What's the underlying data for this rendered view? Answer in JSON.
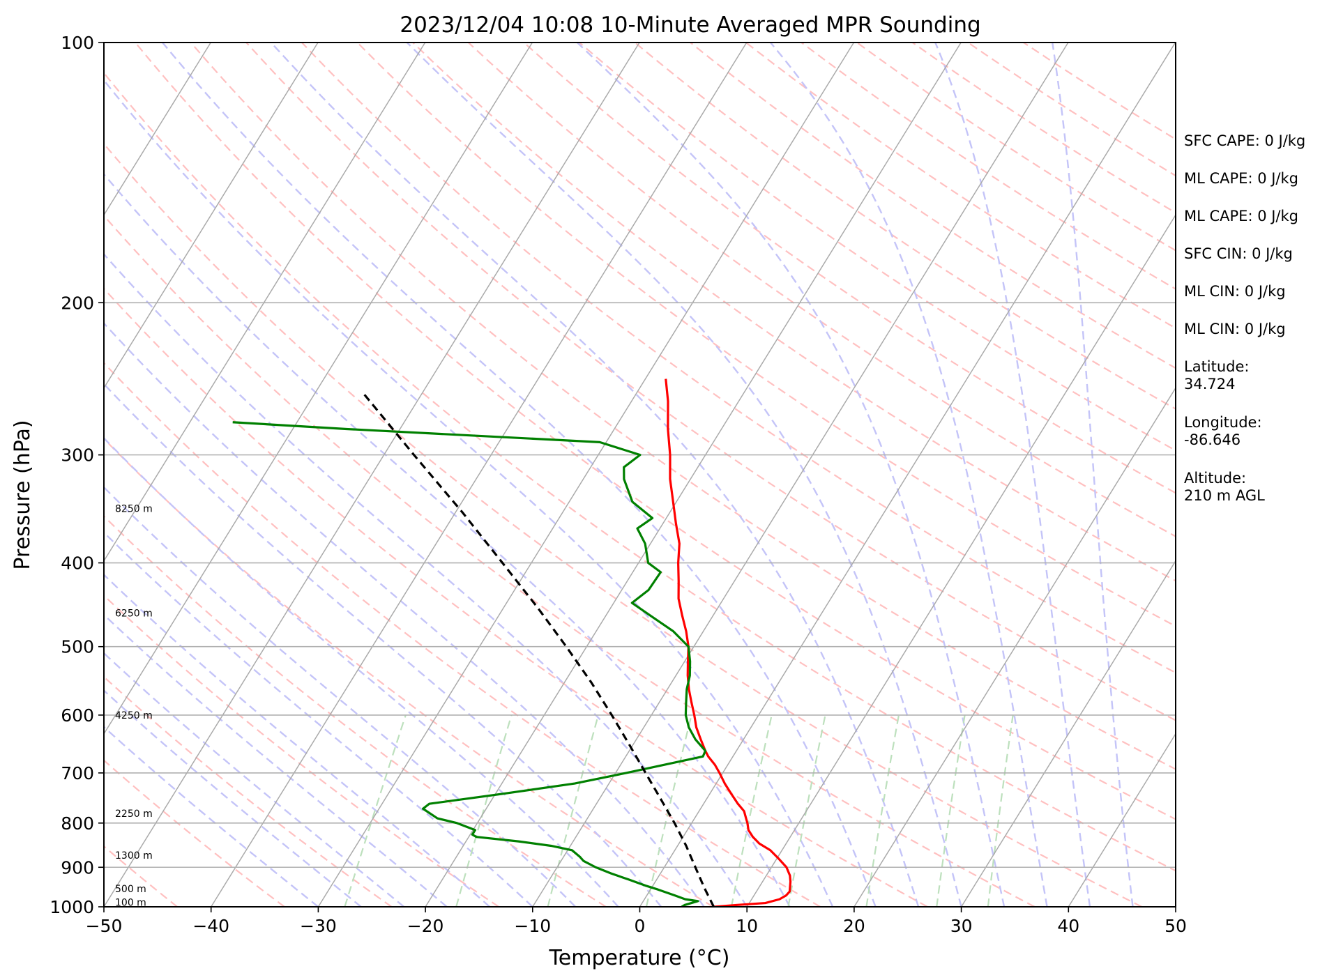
{
  "chart_data": {
    "type": "line",
    "title": "2023/12/04 10:08 10-Minute Averaged MPR Sounding",
    "xlabel": "Temperature (°C)",
    "ylabel": "Pressure (hPa)",
    "xlim": [
      -50,
      50
    ],
    "ylim": [
      1000,
      100
    ],
    "y_scale": "log",
    "x_ticks": [
      -50,
      -40,
      -30,
      -20,
      -10,
      0,
      10,
      20,
      30,
      40,
      50
    ],
    "x_tick_labels": [
      "−50",
      "−40",
      "−30",
      "−20",
      "−10",
      "0",
      "10",
      "20",
      "30",
      "40",
      "50"
    ],
    "y_ticks": [
      100,
      200,
      300,
      400,
      500,
      600,
      700,
      800,
      900,
      1000
    ],
    "grid": true,
    "skew_t": true,
    "series": [
      {
        "color": "#ff0000",
        "points": [
          [
            1000,
            6.9
          ],
          [
            995,
            9.0
          ],
          [
            990,
            11.5
          ],
          [
            980,
            12.6
          ],
          [
            970,
            13.0
          ],
          [
            960,
            13.1
          ],
          [
            950,
            12.9
          ],
          [
            935,
            12.6
          ],
          [
            920,
            12.2
          ],
          [
            900,
            11.4
          ],
          [
            880,
            10.2
          ],
          [
            860,
            8.9
          ],
          [
            845,
            7.5
          ],
          [
            830,
            6.5
          ],
          [
            815,
            5.7
          ],
          [
            800,
            5.2
          ],
          [
            790,
            4.8
          ],
          [
            775,
            4.2
          ],
          [
            760,
            3.2
          ],
          [
            740,
            2.0
          ],
          [
            720,
            0.8
          ],
          [
            700,
            -0.3
          ],
          [
            685,
            -1.2
          ],
          [
            670,
            -2.3
          ],
          [
            660,
            -2.9
          ],
          [
            640,
            -4.0
          ],
          [
            620,
            -5.1
          ],
          [
            600,
            -6.0
          ],
          [
            580,
            -7.0
          ],
          [
            560,
            -8.0
          ],
          [
            540,
            -8.9
          ],
          [
            520,
            -9.7
          ],
          [
            500,
            -10.5
          ],
          [
            480,
            -11.6
          ],
          [
            460,
            -12.9
          ],
          [
            440,
            -14.2
          ],
          [
            420,
            -15.2
          ],
          [
            400,
            -16.3
          ],
          [
            380,
            -17.3
          ],
          [
            360,
            -18.8
          ],
          [
            340,
            -20.3
          ],
          [
            320,
            -21.9
          ],
          [
            300,
            -23.3
          ],
          [
            280,
            -25.0
          ],
          [
            260,
            -26.6
          ],
          [
            245,
            -28.1
          ]
        ]
      },
      {
        "color": "#008000",
        "points": [
          [
            1000,
            3.9
          ],
          [
            995,
            4.1
          ],
          [
            990,
            4.6
          ],
          [
            985,
            5.1
          ],
          [
            980,
            3.8
          ],
          [
            970,
            2.6
          ],
          [
            955,
            0.7
          ],
          [
            945,
            -0.7
          ],
          [
            930,
            -2.6
          ],
          [
            915,
            -4.6
          ],
          [
            900,
            -6.4
          ],
          [
            885,
            -7.9
          ],
          [
            875,
            -8.5
          ],
          [
            860,
            -9.6
          ],
          [
            850,
            -11.8
          ],
          [
            840,
            -15.1
          ],
          [
            830,
            -19.3
          ],
          [
            825,
            -19.8
          ],
          [
            815,
            -19.8
          ],
          [
            800,
            -21.9
          ],
          [
            790,
            -24.0
          ],
          [
            770,
            -25.9
          ],
          [
            760,
            -25.6
          ],
          [
            740,
            -19.3
          ],
          [
            720,
            -13.2
          ],
          [
            700,
            -9.0
          ],
          [
            670,
            -2.8
          ],
          [
            660,
            -2.9
          ],
          [
            640,
            -4.5
          ],
          [
            620,
            -5.8
          ],
          [
            600,
            -6.8
          ],
          [
            580,
            -7.5
          ],
          [
            560,
            -8.2
          ],
          [
            540,
            -8.7
          ],
          [
            520,
            -9.5
          ],
          [
            500,
            -10.5
          ],
          [
            480,
            -12.8
          ],
          [
            460,
            -15.9
          ],
          [
            445,
            -18.3
          ],
          [
            430,
            -17.5
          ],
          [
            410,
            -17.4
          ],
          [
            400,
            -19.1
          ],
          [
            380,
            -20.5
          ],
          [
            365,
            -22.1
          ],
          [
            355,
            -21.3
          ],
          [
            340,
            -24.1
          ],
          [
            320,
            -26.2
          ],
          [
            310,
            -26.9
          ],
          [
            300,
            -26.1
          ],
          [
            290,
            -30.6
          ],
          [
            280,
            -55.0
          ],
          [
            275,
            -66.0
          ]
        ]
      },
      {
        "color": "#000000",
        "points": [
          [
            1000,
            6.9
          ],
          [
            950,
            4.9
          ],
          [
            900,
            2.9
          ],
          [
            850,
            0.8
          ],
          [
            800,
            -1.6
          ],
          [
            750,
            -4.3
          ],
          [
            700,
            -7.2
          ],
          [
            650,
            -10.3
          ],
          [
            600,
            -13.7
          ],
          [
            550,
            -17.5
          ],
          [
            500,
            -21.9
          ],
          [
            450,
            -26.9
          ],
          [
            400,
            -32.7
          ],
          [
            350,
            -39.3
          ],
          [
            300,
            -47.2
          ],
          [
            255,
            -55.4
          ]
        ]
      }
    ],
    "height_labels": [
      {
        "label": "100 m",
        "p": 988
      },
      {
        "label": "500 m",
        "p": 953
      },
      {
        "label": "1300 m",
        "p": 872
      },
      {
        "label": "2250 m",
        "p": 780
      },
      {
        "label": "4250 m",
        "p": 600
      },
      {
        "label": "6250 m",
        "p": 457
      },
      {
        "label": "8250 m",
        "p": 346
      }
    ],
    "annotations": [
      {
        "label": "SFC CAPE: 0 J/kg"
      },
      {
        "label": "ML CAPE: 0 J/kg"
      },
      {
        "label": "ML CAPE: 0 J/kg"
      },
      {
        "label": "SFC CIN: 0 J/kg"
      },
      {
        "label": "ML CIN: 0 J/kg"
      },
      {
        "label": "ML CIN: 0 J/kg"
      },
      {
        "label": "Latitude:\n34.724"
      },
      {
        "label": "Longitude:\n-86.646"
      },
      {
        "label": "Altitude:\n210 m AGL"
      }
    ],
    "colors": {
      "temperature": "#ff0000",
      "dewpoint": "#008000",
      "parcel": "#000000",
      "isotherms": "#aaaaaa",
      "dry_adiabats": "#ffc0c0",
      "moist_adiabats": "#c4c4f8",
      "mixing_ratio": "#bde0bd"
    }
  }
}
